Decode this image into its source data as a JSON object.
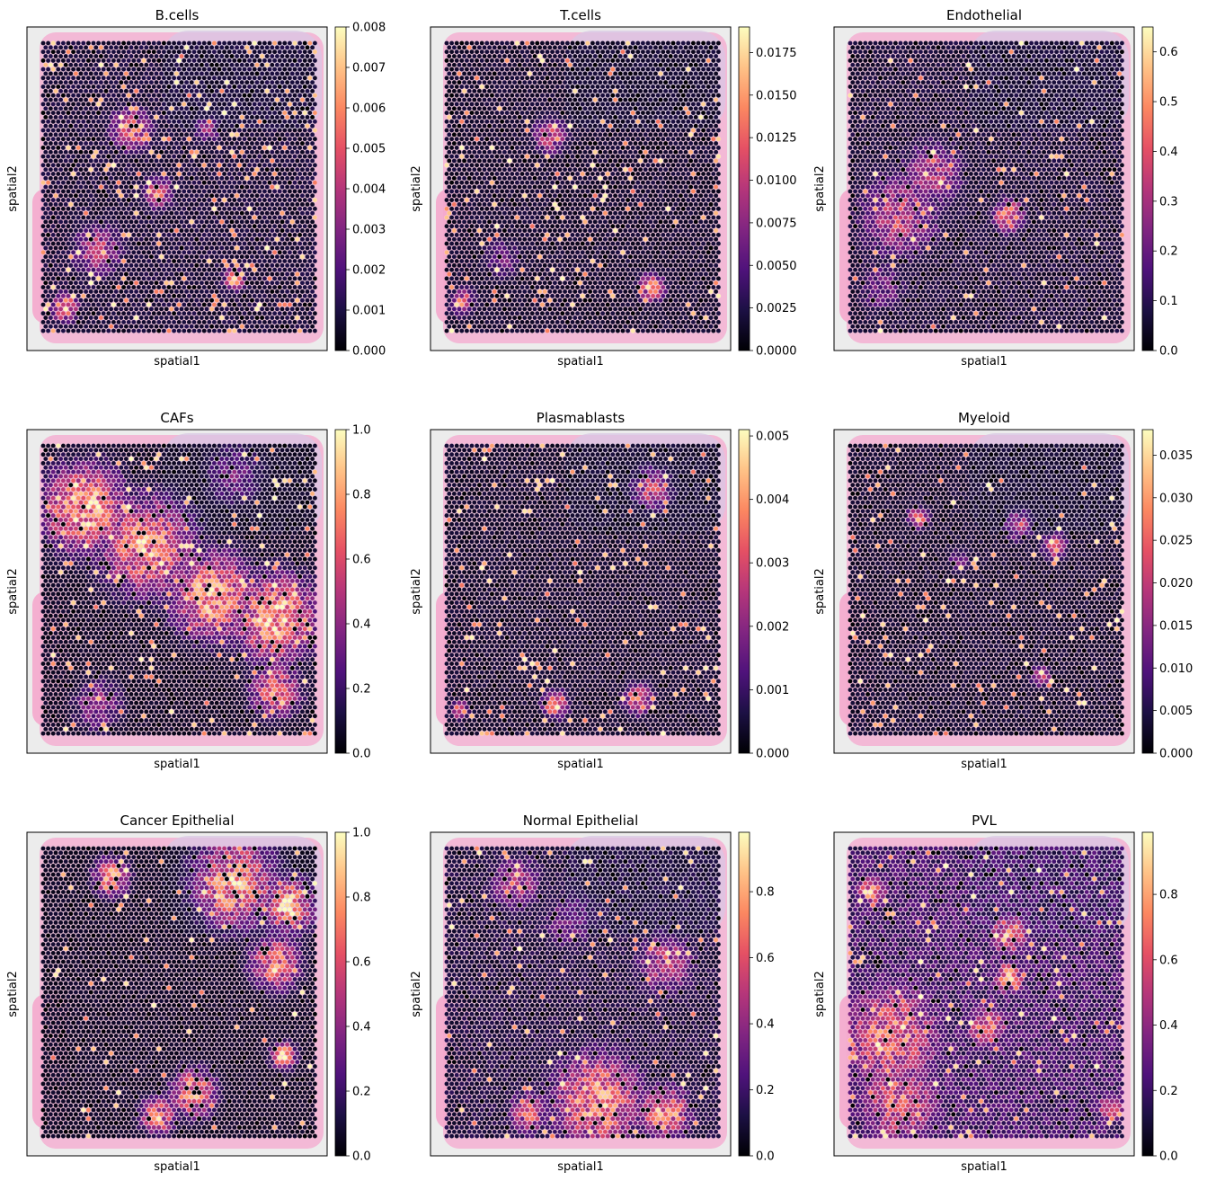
{
  "figure": {
    "colormap": "magma",
    "layout": "3x3 grid"
  },
  "chart_data": [
    {
      "type": "heatmap",
      "title": "B.cells",
      "xlabel": "spatial1",
      "ylabel": "spatial2",
      "colorbar": {
        "range": [
          0,
          0.008
        ],
        "ticks": [
          "0.000",
          "0.001",
          "0.002",
          "0.003",
          "0.004",
          "0.005",
          "0.006",
          "0.007",
          "0.008"
        ]
      },
      "hotspots": [
        {
          "x": 0.32,
          "y": 0.3,
          "r": 0.08,
          "v": 0.75
        },
        {
          "x": 0.42,
          "y": 0.52,
          "r": 0.06,
          "v": 0.65
        },
        {
          "x": 0.2,
          "y": 0.72,
          "r": 0.1,
          "v": 0.55
        },
        {
          "x": 0.08,
          "y": 0.92,
          "r": 0.05,
          "v": 0.9
        },
        {
          "x": 0.7,
          "y": 0.82,
          "r": 0.04,
          "v": 0.9
        },
        {
          "x": 0.6,
          "y": 0.3,
          "r": 0.05,
          "v": 0.45
        }
      ],
      "base": 0.12,
      "speckle": 0.06
    },
    {
      "type": "heatmap",
      "title": "T.cells",
      "xlabel": "spatial1",
      "ylabel": "spatial2",
      "colorbar": {
        "range": [
          0,
          0.019
        ],
        "ticks": [
          "0.0000",
          "0.0025",
          "0.0050",
          "0.0075",
          "0.0100",
          "0.0125",
          "0.0150",
          "0.0175"
        ]
      },
      "hotspots": [
        {
          "x": 0.38,
          "y": 0.32,
          "r": 0.07,
          "v": 0.6
        },
        {
          "x": 0.75,
          "y": 0.85,
          "r": 0.05,
          "v": 0.85
        },
        {
          "x": 0.06,
          "y": 0.9,
          "r": 0.05,
          "v": 0.7
        },
        {
          "x": 0.2,
          "y": 0.75,
          "r": 0.08,
          "v": 0.35
        }
      ],
      "base": 0.1,
      "speckle": 0.05
    },
    {
      "type": "heatmap",
      "title": "Endothelial",
      "xlabel": "spatial1",
      "ylabel": "spatial2",
      "colorbar": {
        "range": [
          0,
          0.65
        ],
        "ticks": [
          "0.0",
          "0.1",
          "0.2",
          "0.3",
          "0.4",
          "0.5",
          "0.6"
        ]
      },
      "hotspots": [
        {
          "x": 0.18,
          "y": 0.6,
          "r": 0.16,
          "v": 0.55
        },
        {
          "x": 0.3,
          "y": 0.45,
          "r": 0.12,
          "v": 0.55
        },
        {
          "x": 0.58,
          "y": 0.6,
          "r": 0.06,
          "v": 0.85
        },
        {
          "x": 0.12,
          "y": 0.85,
          "r": 0.1,
          "v": 0.35
        }
      ],
      "base": 0.12,
      "speckle": 0.03
    },
    {
      "type": "heatmap",
      "title": "CAFs",
      "xlabel": "spatial1",
      "ylabel": "spatial2",
      "colorbar": {
        "range": [
          0,
          1.0
        ],
        "ticks": [
          "0.0",
          "0.2",
          "0.4",
          "0.6",
          "0.8",
          "1.0"
        ]
      },
      "hotspots": [
        {
          "x": 0.15,
          "y": 0.22,
          "r": 0.16,
          "v": 0.95
        },
        {
          "x": 0.38,
          "y": 0.35,
          "r": 0.18,
          "v": 0.85
        },
        {
          "x": 0.62,
          "y": 0.52,
          "r": 0.16,
          "v": 0.9
        },
        {
          "x": 0.85,
          "y": 0.6,
          "r": 0.16,
          "v": 0.95
        },
        {
          "x": 0.85,
          "y": 0.85,
          "r": 0.1,
          "v": 0.75
        },
        {
          "x": 0.2,
          "y": 0.9,
          "r": 0.1,
          "v": 0.45
        },
        {
          "x": 0.7,
          "y": 0.1,
          "r": 0.12,
          "v": 0.35
        }
      ],
      "base": 0.08,
      "speckle": 0.05
    },
    {
      "type": "heatmap",
      "title": "Plasmablasts",
      "xlabel": "spatial1",
      "ylabel": "spatial2",
      "colorbar": {
        "range": [
          0,
          0.0051
        ],
        "ticks": [
          "0.000",
          "0.001",
          "0.002",
          "0.003",
          "0.004",
          "0.005"
        ]
      },
      "hotspots": [
        {
          "x": 0.4,
          "y": 0.9,
          "r": 0.05,
          "v": 0.9
        },
        {
          "x": 0.7,
          "y": 0.88,
          "r": 0.06,
          "v": 0.7
        },
        {
          "x": 0.75,
          "y": 0.15,
          "r": 0.08,
          "v": 0.6
        },
        {
          "x": 0.05,
          "y": 0.92,
          "r": 0.03,
          "v": 0.9
        }
      ],
      "base": 0.1,
      "speckle": 0.04
    },
    {
      "type": "heatmap",
      "title": "Myeloid",
      "xlabel": "spatial1",
      "ylabel": "spatial2",
      "colorbar": {
        "range": [
          0,
          0.038
        ],
        "ticks": [
          "0.000",
          "0.005",
          "0.010",
          "0.015",
          "0.020",
          "0.025",
          "0.030",
          "0.035"
        ]
      },
      "hotspots": [
        {
          "x": 0.62,
          "y": 0.28,
          "r": 0.06,
          "v": 0.55
        },
        {
          "x": 0.75,
          "y": 0.35,
          "r": 0.05,
          "v": 0.7
        },
        {
          "x": 0.25,
          "y": 0.25,
          "r": 0.04,
          "v": 0.85
        },
        {
          "x": 0.4,
          "y": 0.4,
          "r": 0.05,
          "v": 0.35
        },
        {
          "x": 0.7,
          "y": 0.8,
          "r": 0.04,
          "v": 0.6
        }
      ],
      "base": 0.1,
      "speckle": 0.04
    },
    {
      "type": "heatmap",
      "title": "Cancer Epithelial",
      "xlabel": "spatial1",
      "ylabel": "spatial2",
      "colorbar": {
        "range": [
          0,
          1.0
        ],
        "ticks": [
          "0.0",
          "0.2",
          "0.4",
          "0.6",
          "0.8",
          "1.0"
        ]
      },
      "hotspots": [
        {
          "x": 0.7,
          "y": 0.12,
          "r": 0.16,
          "v": 0.9
        },
        {
          "x": 0.9,
          "y": 0.2,
          "r": 0.1,
          "v": 0.95
        },
        {
          "x": 0.85,
          "y": 0.4,
          "r": 0.1,
          "v": 0.8
        },
        {
          "x": 0.25,
          "y": 0.1,
          "r": 0.07,
          "v": 0.85
        },
        {
          "x": 0.55,
          "y": 0.85,
          "r": 0.09,
          "v": 0.85
        },
        {
          "x": 0.42,
          "y": 0.93,
          "r": 0.07,
          "v": 0.8
        },
        {
          "x": 0.88,
          "y": 0.72,
          "r": 0.05,
          "v": 0.9
        }
      ],
      "base": 0.08,
      "speckle": 0.03
    },
    {
      "type": "heatmap",
      "title": "Normal Epithelial",
      "xlabel": "spatial1",
      "ylabel": "spatial2",
      "colorbar": {
        "range": [
          0,
          0.98
        ],
        "ticks": [
          "0.0",
          "0.2",
          "0.4",
          "0.6",
          "0.8"
        ]
      },
      "hotspots": [
        {
          "x": 0.55,
          "y": 0.88,
          "r": 0.18,
          "v": 0.85
        },
        {
          "x": 0.8,
          "y": 0.92,
          "r": 0.1,
          "v": 0.85
        },
        {
          "x": 0.3,
          "y": 0.92,
          "r": 0.08,
          "v": 0.65
        },
        {
          "x": 0.8,
          "y": 0.4,
          "r": 0.12,
          "v": 0.55
        },
        {
          "x": 0.25,
          "y": 0.12,
          "r": 0.1,
          "v": 0.55
        },
        {
          "x": 0.45,
          "y": 0.25,
          "r": 0.12,
          "v": 0.35
        }
      ],
      "base": 0.14,
      "speckle": 0.03
    },
    {
      "type": "heatmap",
      "title": "PVL",
      "xlabel": "spatial1",
      "ylabel": "spatial2",
      "colorbar": {
        "range": [
          0,
          0.99
        ],
        "ticks": [
          "0.0",
          "0.2",
          "0.4",
          "0.6",
          "0.8"
        ]
      },
      "hotspots": [
        {
          "x": 0.15,
          "y": 0.65,
          "r": 0.2,
          "v": 0.75
        },
        {
          "x": 0.18,
          "y": 0.88,
          "r": 0.16,
          "v": 0.7
        },
        {
          "x": 0.58,
          "y": 0.3,
          "r": 0.07,
          "v": 0.9
        },
        {
          "x": 0.58,
          "y": 0.45,
          "r": 0.06,
          "v": 0.9
        },
        {
          "x": 0.5,
          "y": 0.62,
          "r": 0.08,
          "v": 0.8
        },
        {
          "x": 0.08,
          "y": 0.15,
          "r": 0.06,
          "v": 0.8
        },
        {
          "x": 0.95,
          "y": 0.9,
          "r": 0.05,
          "v": 0.8
        }
      ],
      "base": 0.25,
      "speckle": 0.04
    }
  ]
}
